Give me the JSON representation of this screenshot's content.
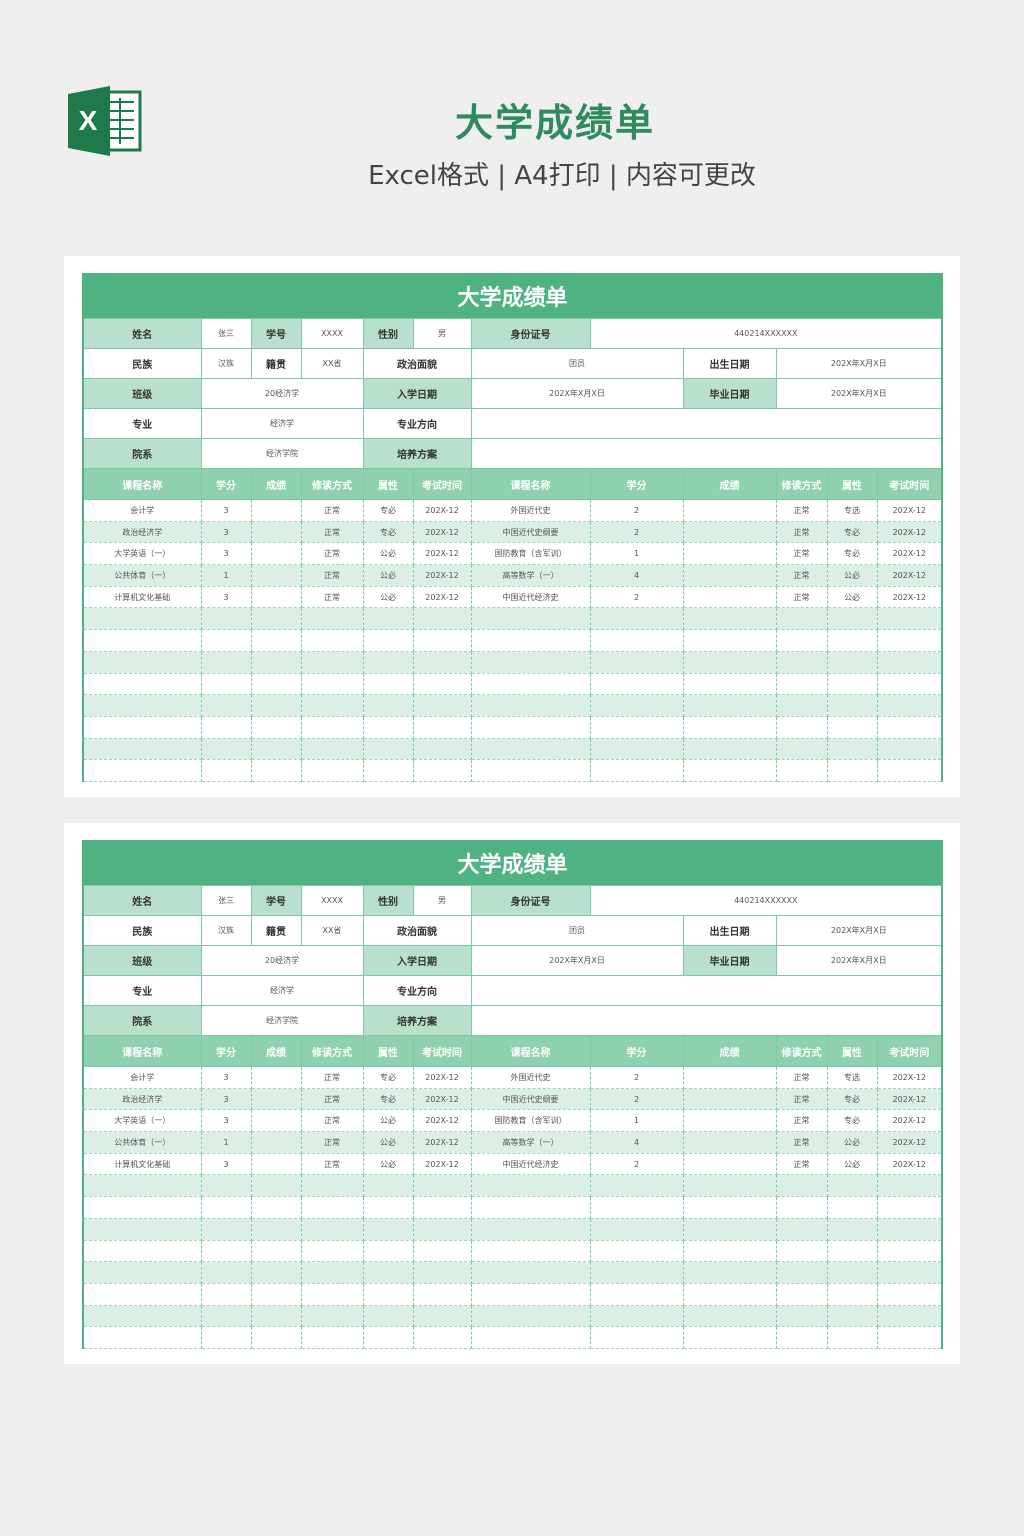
{
  "header": {
    "title": "大学成绩单",
    "subtitle": "Excel格式 | A4打印 | 内容可更改",
    "logo_letter": "X"
  },
  "colors": {
    "title_bar": "#4fb283",
    "label_bg": "#b8e0cc",
    "header_bg": "#8fd0b0",
    "alt_row": "#dcefe5"
  },
  "sheet": {
    "title": "大学成绩单",
    "info": {
      "name_label": "姓名",
      "name": "张三",
      "id_label": "学号",
      "id": "XXXX",
      "gender_label": "性别",
      "gender": "男",
      "idcard_label": "身份证号",
      "idcard": "440214XXXXXX",
      "ethnic_label": "民族",
      "ethnic": "汉族",
      "native_label": "籍贯",
      "native": "XX省",
      "political_label": "政治面貌",
      "political": "团员",
      "birth_label": "出生日期",
      "birth": "202X年X月X日",
      "class_label": "班级",
      "class": "20经济学",
      "enroll_label": "入学日期",
      "enroll": "202X年X月X日",
      "grad_label": "毕业日期",
      "grad": "202X年X月X日",
      "major_label": "专业",
      "major": "经济学",
      "direction_label": "专业方向",
      "direction": "",
      "dept_label": "院系",
      "dept": "经济学院",
      "plan_label": "培养方案",
      "plan": ""
    },
    "columns": [
      "课程名称",
      "学分",
      "成绩",
      "修读方式",
      "属性",
      "考试时间",
      "课程名称",
      "学分",
      "成绩",
      "修读方式",
      "属性",
      "考试时间"
    ],
    "rows": [
      [
        "会计学",
        "3",
        "",
        "正常",
        "专必",
        "202X-12",
        "外国近代史",
        "2",
        "",
        "正常",
        "专选",
        "202X-12"
      ],
      [
        "政治经济学",
        "3",
        "",
        "正常",
        "专必",
        "202X-12",
        "中国近代史纲要",
        "2",
        "",
        "正常",
        "专必",
        "202X-12"
      ],
      [
        "大学英语（一）",
        "3",
        "",
        "正常",
        "公必",
        "202X-12",
        "国防教育（含军训）",
        "1",
        "",
        "正常",
        "专必",
        "202X-12"
      ],
      [
        "公共体育（一）",
        "1",
        "",
        "正常",
        "公必",
        "202X-12",
        "高等数学（一）",
        "4",
        "",
        "正常",
        "公必",
        "202X-12"
      ],
      [
        "计算机文化基础",
        "3",
        "",
        "正常",
        "公必",
        "202X-12",
        "中国近代经济史",
        "2",
        "",
        "正常",
        "公必",
        "202X-12"
      ]
    ]
  }
}
